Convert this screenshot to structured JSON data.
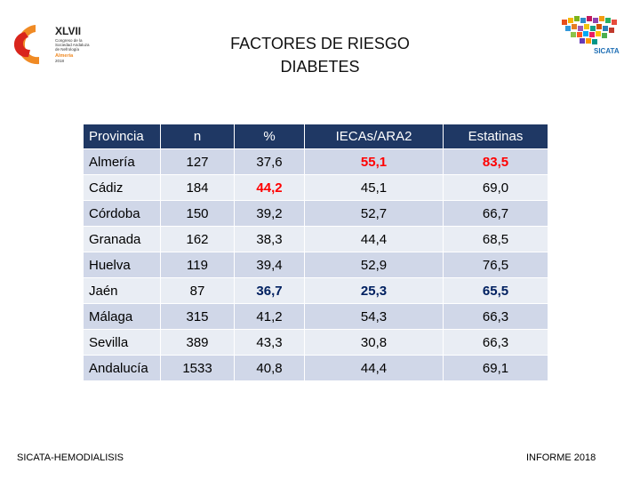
{
  "header": {
    "title_line1": "FACTORES DE RIESGO",
    "title_line2": "DIABETES",
    "left_logo": {
      "numeral": "XLVII",
      "lines": [
        "Congreso de la",
        "Sociedad Andaluza",
        "de Nefrología",
        "Almería",
        "2018"
      ]
    },
    "right_logo": {
      "label": "SICATA"
    }
  },
  "table": {
    "columns": [
      "Provincia",
      "n",
      "%",
      "IECAs/ARA2",
      "Estatinas"
    ],
    "rows": [
      {
        "provincia": "Almería",
        "n": "127",
        "pct": "37,6",
        "ieca": "55,1",
        "estatinas": "83,5"
      },
      {
        "provincia": "Cádiz",
        "n": "184",
        "pct": "44,2",
        "ieca": "45,1",
        "estatinas": "69,0"
      },
      {
        "provincia": "Córdoba",
        "n": "150",
        "pct": "39,2",
        "ieca": "52,7",
        "estatinas": "66,7"
      },
      {
        "provincia": "Granada",
        "n": "162",
        "pct": "38,3",
        "ieca": "44,4",
        "estatinas": "68,5"
      },
      {
        "provincia": "Huelva",
        "n": "119",
        "pct": "39,4",
        "ieca": "52,9",
        "estatinas": "76,5"
      },
      {
        "provincia": "Jaén",
        "n": "87",
        "pct": "36,7",
        "ieca": "25,3",
        "estatinas": "65,5"
      },
      {
        "provincia": "Málaga",
        "n": "315",
        "pct": "41,2",
        "ieca": "54,3",
        "estatinas": "66,3"
      },
      {
        "provincia": "Sevilla",
        "n": "389",
        "pct": "43,3",
        "ieca": "30,8",
        "estatinas": "66,3"
      },
      {
        "provincia": "Andalucía",
        "n": "1533",
        "pct": "40,8",
        "ieca": "44,4",
        "estatinas": "69,1"
      }
    ],
    "highlight_colors": {
      "max": "#ff0000",
      "min": "#002060"
    }
  },
  "footer": {
    "left": "SICATA-HEMODIALISIS",
    "right": "INFORME 2018"
  }
}
